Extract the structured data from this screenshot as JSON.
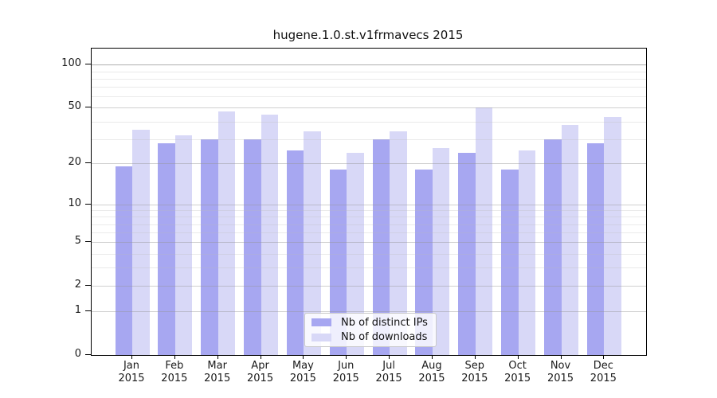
{
  "title": "hugene.1.0.st.v1frmavecs 2015",
  "chart_data": {
    "type": "bar",
    "title": "hugene.1.0.st.v1frmavecs 2015",
    "categories": [
      "Jan",
      "Feb",
      "Mar",
      "Apr",
      "May",
      "Jun",
      "Jul",
      "Aug",
      "Sep",
      "Oct",
      "Nov",
      "Dec"
    ],
    "year": "2015",
    "series": [
      {
        "name": "Nb of distinct IPs",
        "color": "#a7a7f1",
        "values": [
          19,
          28,
          30,
          30,
          25,
          18,
          30,
          18,
          24,
          18,
          30,
          28
        ]
      },
      {
        "name": "Nb of downloads",
        "color": "#d8d8f7",
        "values": [
          35,
          32,
          47,
          45,
          34,
          24,
          34,
          26,
          50,
          25,
          38,
          43
        ]
      }
    ],
    "y_axis": {
      "scale": "log1p",
      "ticks": [
        100,
        50,
        20,
        10,
        5,
        2,
        1,
        0
      ],
      "minor_ticks": [
        90,
        80,
        70,
        60,
        40,
        30,
        9,
        8,
        7,
        6,
        4,
        3
      ],
      "ylim": [
        0,
        130
      ]
    },
    "x_axis": {
      "label_line2": "2015"
    },
    "legend": {
      "position": "bottom-center"
    },
    "grid": true
  },
  "colors": {
    "bar_distinct_ips": "#a7a7f1",
    "bar_downloads": "#d8d8f7",
    "grid_major": "#cccccc",
    "grid_minor": "#ebebeb",
    "axis_frame": "#000000",
    "background": "#ffffff"
  }
}
